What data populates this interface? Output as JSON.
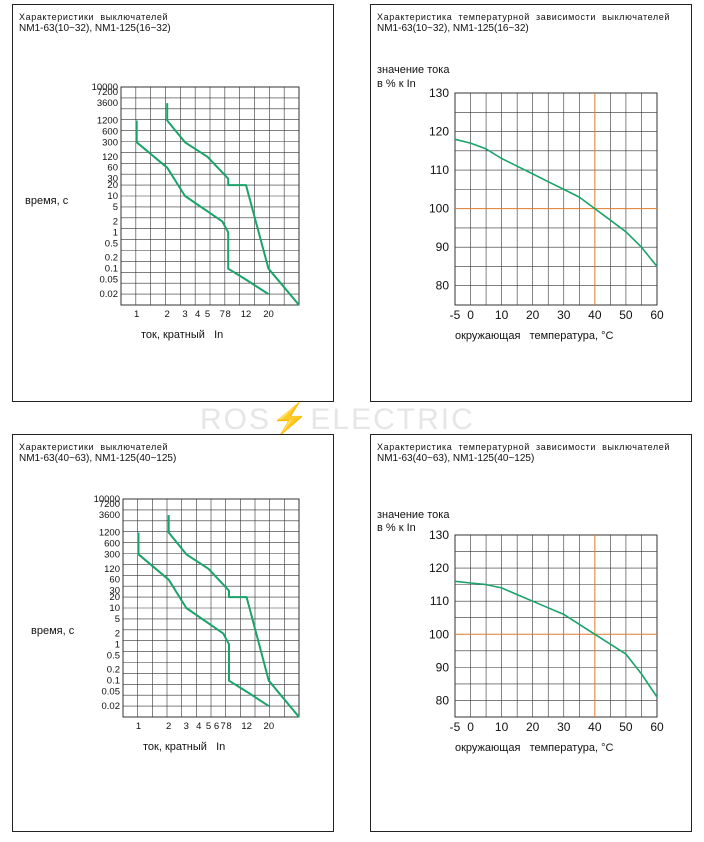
{
  "watermark": {
    "left": "ROS",
    "bolt": "⚡",
    "right": "ELECTRIC"
  },
  "colors": {
    "curve": "#1aa36a",
    "grid": "#333333",
    "highlight": "#e07a2a"
  },
  "panels": [
    {
      "title_line1": "Характеристики  выключателей",
      "title_line2": "NM1-63(10~32), NM1-125(16~32)",
      "ylabel": "время, с",
      "xlabel": "ток, кратный   In"
    },
    {
      "title_line1": "Характеристика  температурной  зависимости  выключателей",
      "title_line2": "NM1-63(10~32), NM1-125(16~32)",
      "ylabel_line1": "значение тока",
      "ylabel_line2": "в % к In",
      "xlabel": "окружающая   температура, °C"
    },
    {
      "title_line1": "Характеристики  выключателей",
      "title_line2": "NM1-63(40~63), NM1-125(40~125)",
      "ylabel": "время, с",
      "xlabel": "ток, кратный   In"
    },
    {
      "title_line1": "Характеристика  температурной  зависимости  выключателей",
      "title_line2": "NM1-63(40~63), NM1-125(40~125)",
      "ylabel_line1": "значение тока",
      "ylabel_line2": "в % к In",
      "xlabel": "окружающая   температура, °C"
    }
  ],
  "chart_data": [
    {
      "type": "line",
      "title": "Характеристики выключателей NM1-63(10~32), NM1-125(16~32)",
      "xlabel": "ток, кратный In",
      "ylabel": "время, с",
      "x_ticks": [
        "1",
        "2",
        "3",
        "4",
        "5",
        "7",
        "8",
        "12",
        "20"
      ],
      "y_ticks": [
        "10000",
        "7200",
        "3600",
        "1200",
        "600",
        "300",
        "120",
        "60",
        "30",
        "20",
        "10",
        "5",
        "2",
        "1",
        "0.5",
        "0.2",
        "0.1",
        "0.05",
        "0.02"
      ],
      "series": [
        {
          "x": [
            2,
            2,
            3,
            5,
            8,
            8,
            12,
            20,
            40
          ],
          "y": [
            3600,
            1200,
            300,
            120,
            30,
            20,
            20,
            0.1,
            0.01
          ]
        },
        {
          "x": [
            1,
            1,
            2,
            3,
            7,
            8,
            8,
            12,
            20
          ],
          "y": [
            1200,
            300,
            60,
            10,
            2,
            1,
            0.1,
            0.05,
            0.02
          ]
        }
      ]
    },
    {
      "type": "line",
      "title": "Характеристика температурной зависимости выключателей NM1-63(10~32), NM1-125(16~32)",
      "xlabel": "окружающая температура, °C",
      "ylabel": "значение тока в % к In",
      "xlim": [
        -5,
        60
      ],
      "ylim": [
        75,
        130
      ],
      "x_ticks": [
        "-5",
        "0",
        "10",
        "20",
        "30",
        "40",
        "50",
        "60"
      ],
      "y_ticks": [
        "130",
        "120",
        "110",
        "100",
        "90",
        "80"
      ],
      "reference": {
        "x": 40,
        "y": 100
      },
      "series": [
        {
          "x": [
            -5,
            0,
            5,
            10,
            15,
            20,
            25,
            30,
            35,
            40,
            45,
            50,
            55,
            60
          ],
          "y": [
            118,
            117,
            115.5,
            113,
            111,
            109,
            107,
            105,
            103,
            100,
            97,
            94,
            90,
            85
          ]
        }
      ]
    },
    {
      "type": "line",
      "title": "Характеристики выключателей NM1-63(40~63), NM1-125(40~125)",
      "xlabel": "ток, кратный In",
      "ylabel": "время, с",
      "x_ticks": [
        "1",
        "2",
        "3",
        "4",
        "5",
        "6",
        "7",
        "8",
        "12",
        "20"
      ],
      "y_ticks": [
        "10000",
        "7200",
        "3600",
        "1200",
        "600",
        "300",
        "120",
        "60",
        "30",
        "20",
        "10",
        "5",
        "2",
        "1",
        "0.5",
        "0.2",
        "0.1",
        "0.05",
        "0.02"
      ],
      "series": [
        {
          "x": [
            2,
            2,
            3,
            5,
            8,
            8,
            12,
            20,
            40
          ],
          "y": [
            3600,
            1200,
            300,
            120,
            30,
            20,
            20,
            0.1,
            0.01
          ]
        },
        {
          "x": [
            1,
            1,
            2,
            3,
            7,
            8,
            8,
            12,
            20
          ],
          "y": [
            1200,
            300,
            60,
            10,
            2,
            1,
            0.1,
            0.05,
            0.02
          ]
        }
      ]
    },
    {
      "type": "line",
      "title": "Характеристика температурной зависимости выключателей NM1-63(40~63), NM1-125(40~125)",
      "xlabel": "окружающая температура, °C",
      "ylabel": "значение тока в % к In",
      "xlim": [
        -5,
        60
      ],
      "ylim": [
        75,
        130
      ],
      "x_ticks": [
        "-5",
        "0",
        "10",
        "20",
        "30",
        "40",
        "50",
        "60"
      ],
      "y_ticks": [
        "130",
        "120",
        "110",
        "100",
        "90",
        "80"
      ],
      "reference": {
        "x": 40,
        "y": 100
      },
      "series": [
        {
          "x": [
            -5,
            0,
            5,
            10,
            15,
            20,
            25,
            30,
            35,
            40,
            45,
            50,
            55,
            60
          ],
          "y": [
            116,
            115.5,
            115,
            114,
            112,
            110,
            108,
            106,
            103,
            100,
            97,
            94,
            88,
            81
          ]
        }
      ]
    }
  ]
}
